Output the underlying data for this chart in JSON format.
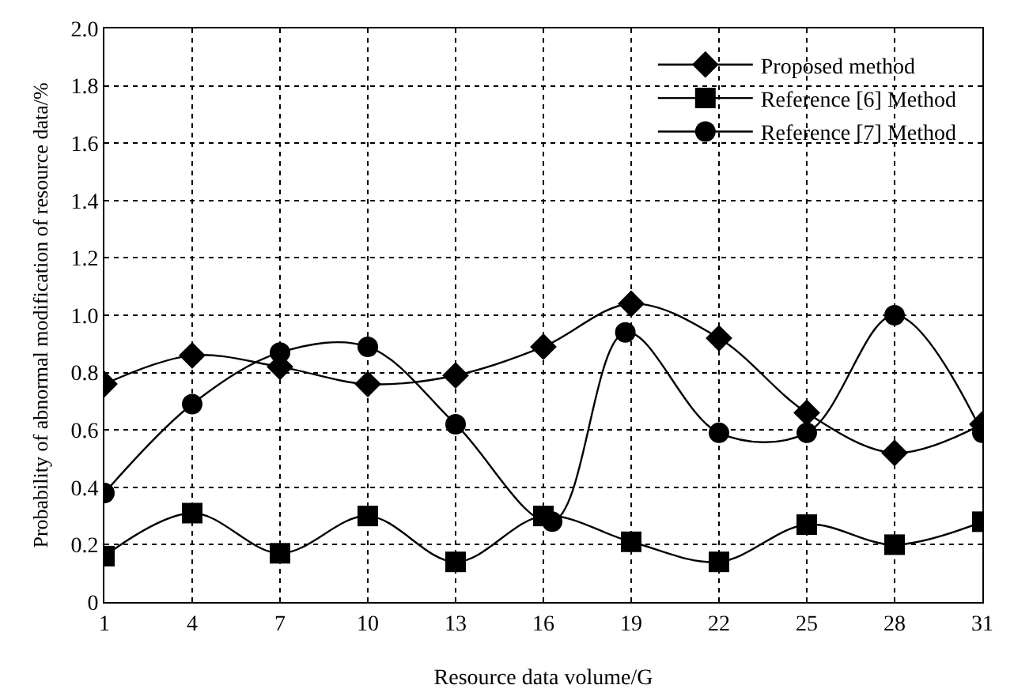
{
  "chart_data": {
    "type": "line",
    "xlabel": "Resource data volume/G",
    "ylabel": "Probability of abnormal modification of resource data/%",
    "x": [
      1,
      4,
      7,
      10,
      13,
      16,
      19,
      22,
      25,
      28,
      31
    ],
    "xlim": [
      1,
      31
    ],
    "xticks": [
      1,
      4,
      7,
      10,
      13,
      16,
      19,
      22,
      25,
      28,
      31
    ],
    "ylim": [
      0,
      2
    ],
    "yticks": [
      0,
      0.2,
      0.4,
      0.6,
      0.8,
      {
        "value": 1,
        "label": "1.0"
      },
      1.2,
      1.4,
      1.6,
      1.8,
      {
        "value": 2,
        "label": "2.0"
      }
    ],
    "grid": true,
    "legend": "top right",
    "line_style": "solid",
    "series": [
      {
        "name": "Proposed method",
        "color": "#000000",
        "marker": "diamond",
        "values": [
          0.76,
          0.86,
          0.82,
          0.76,
          0.79,
          0.89,
          1.04,
          0.92,
          0.66,
          0.52,
          0.62
        ]
      },
      {
        "name": "Reference [6] Method",
        "color": "#000000",
        "marker": "square",
        "values": [
          0.16,
          0.31,
          0.17,
          0.3,
          0.14,
          0.3,
          0.21,
          0.14,
          0.27,
          0.2,
          0.28
        ]
      },
      {
        "name": "Reference [7] Method",
        "color": "#000000",
        "marker": "circle",
        "x": [
          1,
          4,
          7,
          10,
          13,
          16.3,
          18.8,
          22,
          25,
          28,
          31
        ],
        "values": [
          0.38,
          0.69,
          0.87,
          0.89,
          0.62,
          0.28,
          0.94,
          0.59,
          0.59,
          1.0,
          0.59
        ]
      }
    ]
  }
}
